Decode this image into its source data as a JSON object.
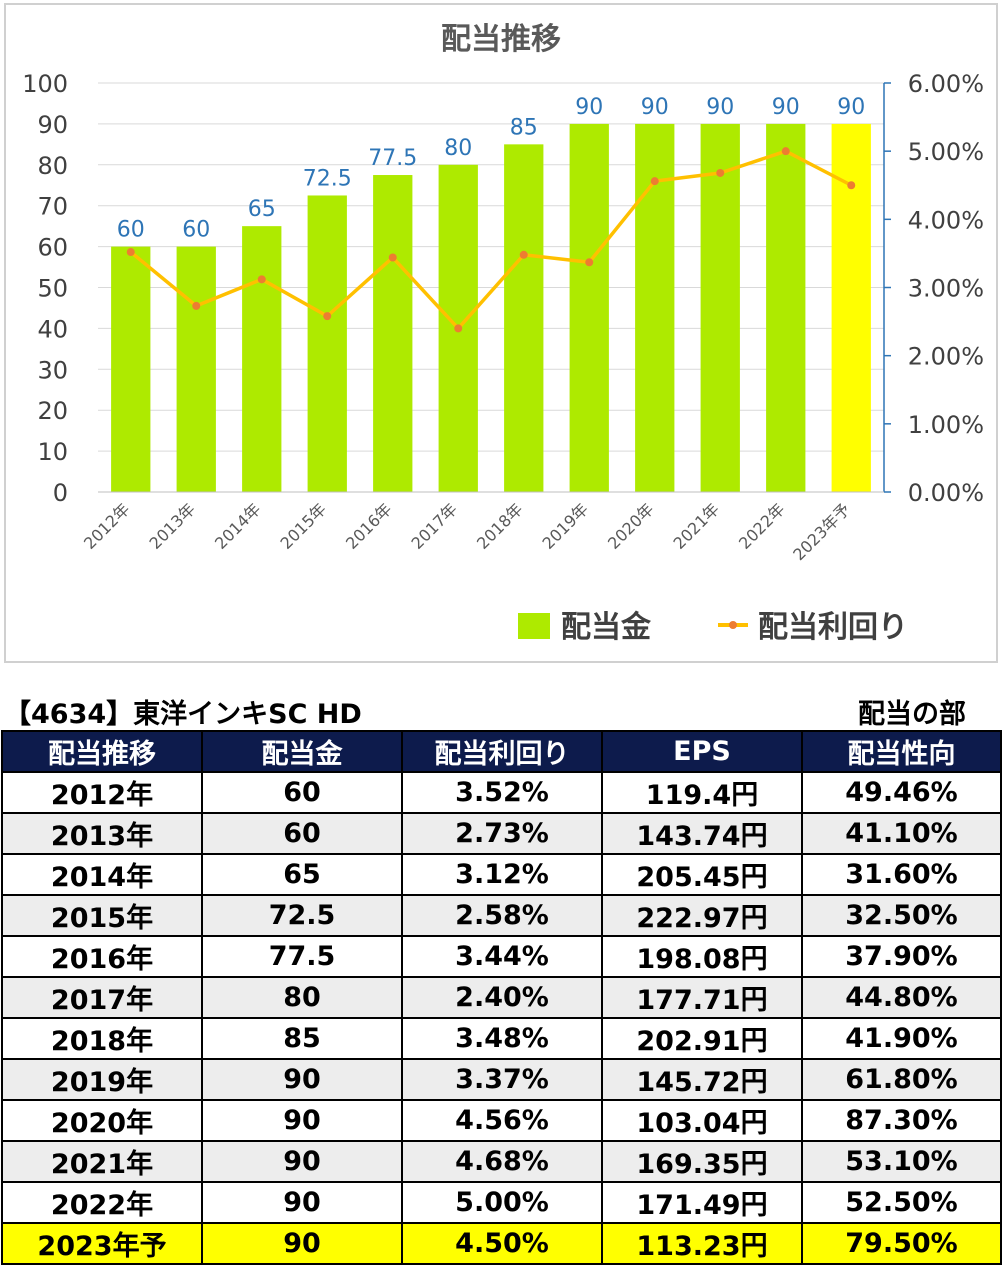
{
  "chart_data": {
    "type": "bar+line",
    "title": "配当推移",
    "categories": [
      "2012年",
      "2013年",
      "2014年",
      "2015年",
      "2016年",
      "2017年",
      "2018年",
      "2019年",
      "2020年",
      "2021年",
      "2022年",
      "2023年予"
    ],
    "series": [
      {
        "name": "配当金",
        "type": "bar",
        "axis": "left",
        "values": [
          60,
          60,
          65,
          72.5,
          77.5,
          80,
          85,
          90,
          90,
          90,
          90,
          90
        ],
        "data_labels": [
          "60",
          "60",
          "65",
          "72.5",
          "77.5",
          "80",
          "85",
          "90",
          "90",
          "90",
          "90",
          "90"
        ]
      },
      {
        "name": "配当利回り",
        "type": "line",
        "axis": "right",
        "values": [
          3.52,
          2.73,
          3.12,
          2.58,
          3.44,
          2.4,
          3.48,
          3.37,
          4.56,
          4.68,
          5.0,
          4.5
        ]
      }
    ],
    "y_left": {
      "min": 0,
      "max": 100,
      "ticks": [
        "0",
        "10",
        "20",
        "30",
        "40",
        "50",
        "60",
        "70",
        "80",
        "90",
        "100"
      ]
    },
    "y_right": {
      "min": 0,
      "max": 6,
      "ticks": [
        "0.00%",
        "1.00%",
        "2.00%",
        "3.00%",
        "4.00%",
        "5.00%",
        "6.00%"
      ]
    },
    "grid": true,
    "legend": "bottom-right",
    "forecast_index": 11,
    "colors": {
      "bar": "#aeea00",
      "bar_forecast": "#ffff00",
      "line": "#ffc000",
      "marker": "#ed7d31",
      "data_label": "#2e75b6",
      "axis_right": "#2e75b6",
      "grid": "#d9d9d9",
      "title": "#595959"
    }
  },
  "table_title": "【4634】東洋インキSC HD",
  "section_label": "配当の部",
  "table": {
    "headers": [
      "配当推移",
      "配当金",
      "配当利回り",
      "EPS",
      "配当性向"
    ],
    "rows": [
      [
        "2012年",
        "60",
        "3.52%",
        "119.4円",
        "49.46%"
      ],
      [
        "2013年",
        "60",
        "2.73%",
        "143.74円",
        "41.10%"
      ],
      [
        "2014年",
        "65",
        "3.12%",
        "205.45円",
        "31.60%"
      ],
      [
        "2015年",
        "72.5",
        "2.58%",
        "222.97円",
        "32.50%"
      ],
      [
        "2016年",
        "77.5",
        "3.44%",
        "198.08円",
        "37.90%"
      ],
      [
        "2017年",
        "80",
        "2.40%",
        "177.71円",
        "44.80%"
      ],
      [
        "2018年",
        "85",
        "3.48%",
        "202.91円",
        "41.90%"
      ],
      [
        "2019年",
        "90",
        "3.37%",
        "145.72円",
        "61.80%"
      ],
      [
        "2020年",
        "90",
        "4.56%",
        "103.04円",
        "87.30%"
      ],
      [
        "2021年",
        "90",
        "4.68%",
        "169.35円",
        "53.10%"
      ],
      [
        "2022年",
        "90",
        "5.00%",
        "171.49円",
        "52.50%"
      ],
      [
        "2023年予",
        "90",
        "4.50%",
        "113.23円",
        "79.50%"
      ]
    ],
    "header_bg": "#0d1b4c",
    "alt_row_bg": "#ededed",
    "forecast_row_bg": "#ffff00"
  }
}
